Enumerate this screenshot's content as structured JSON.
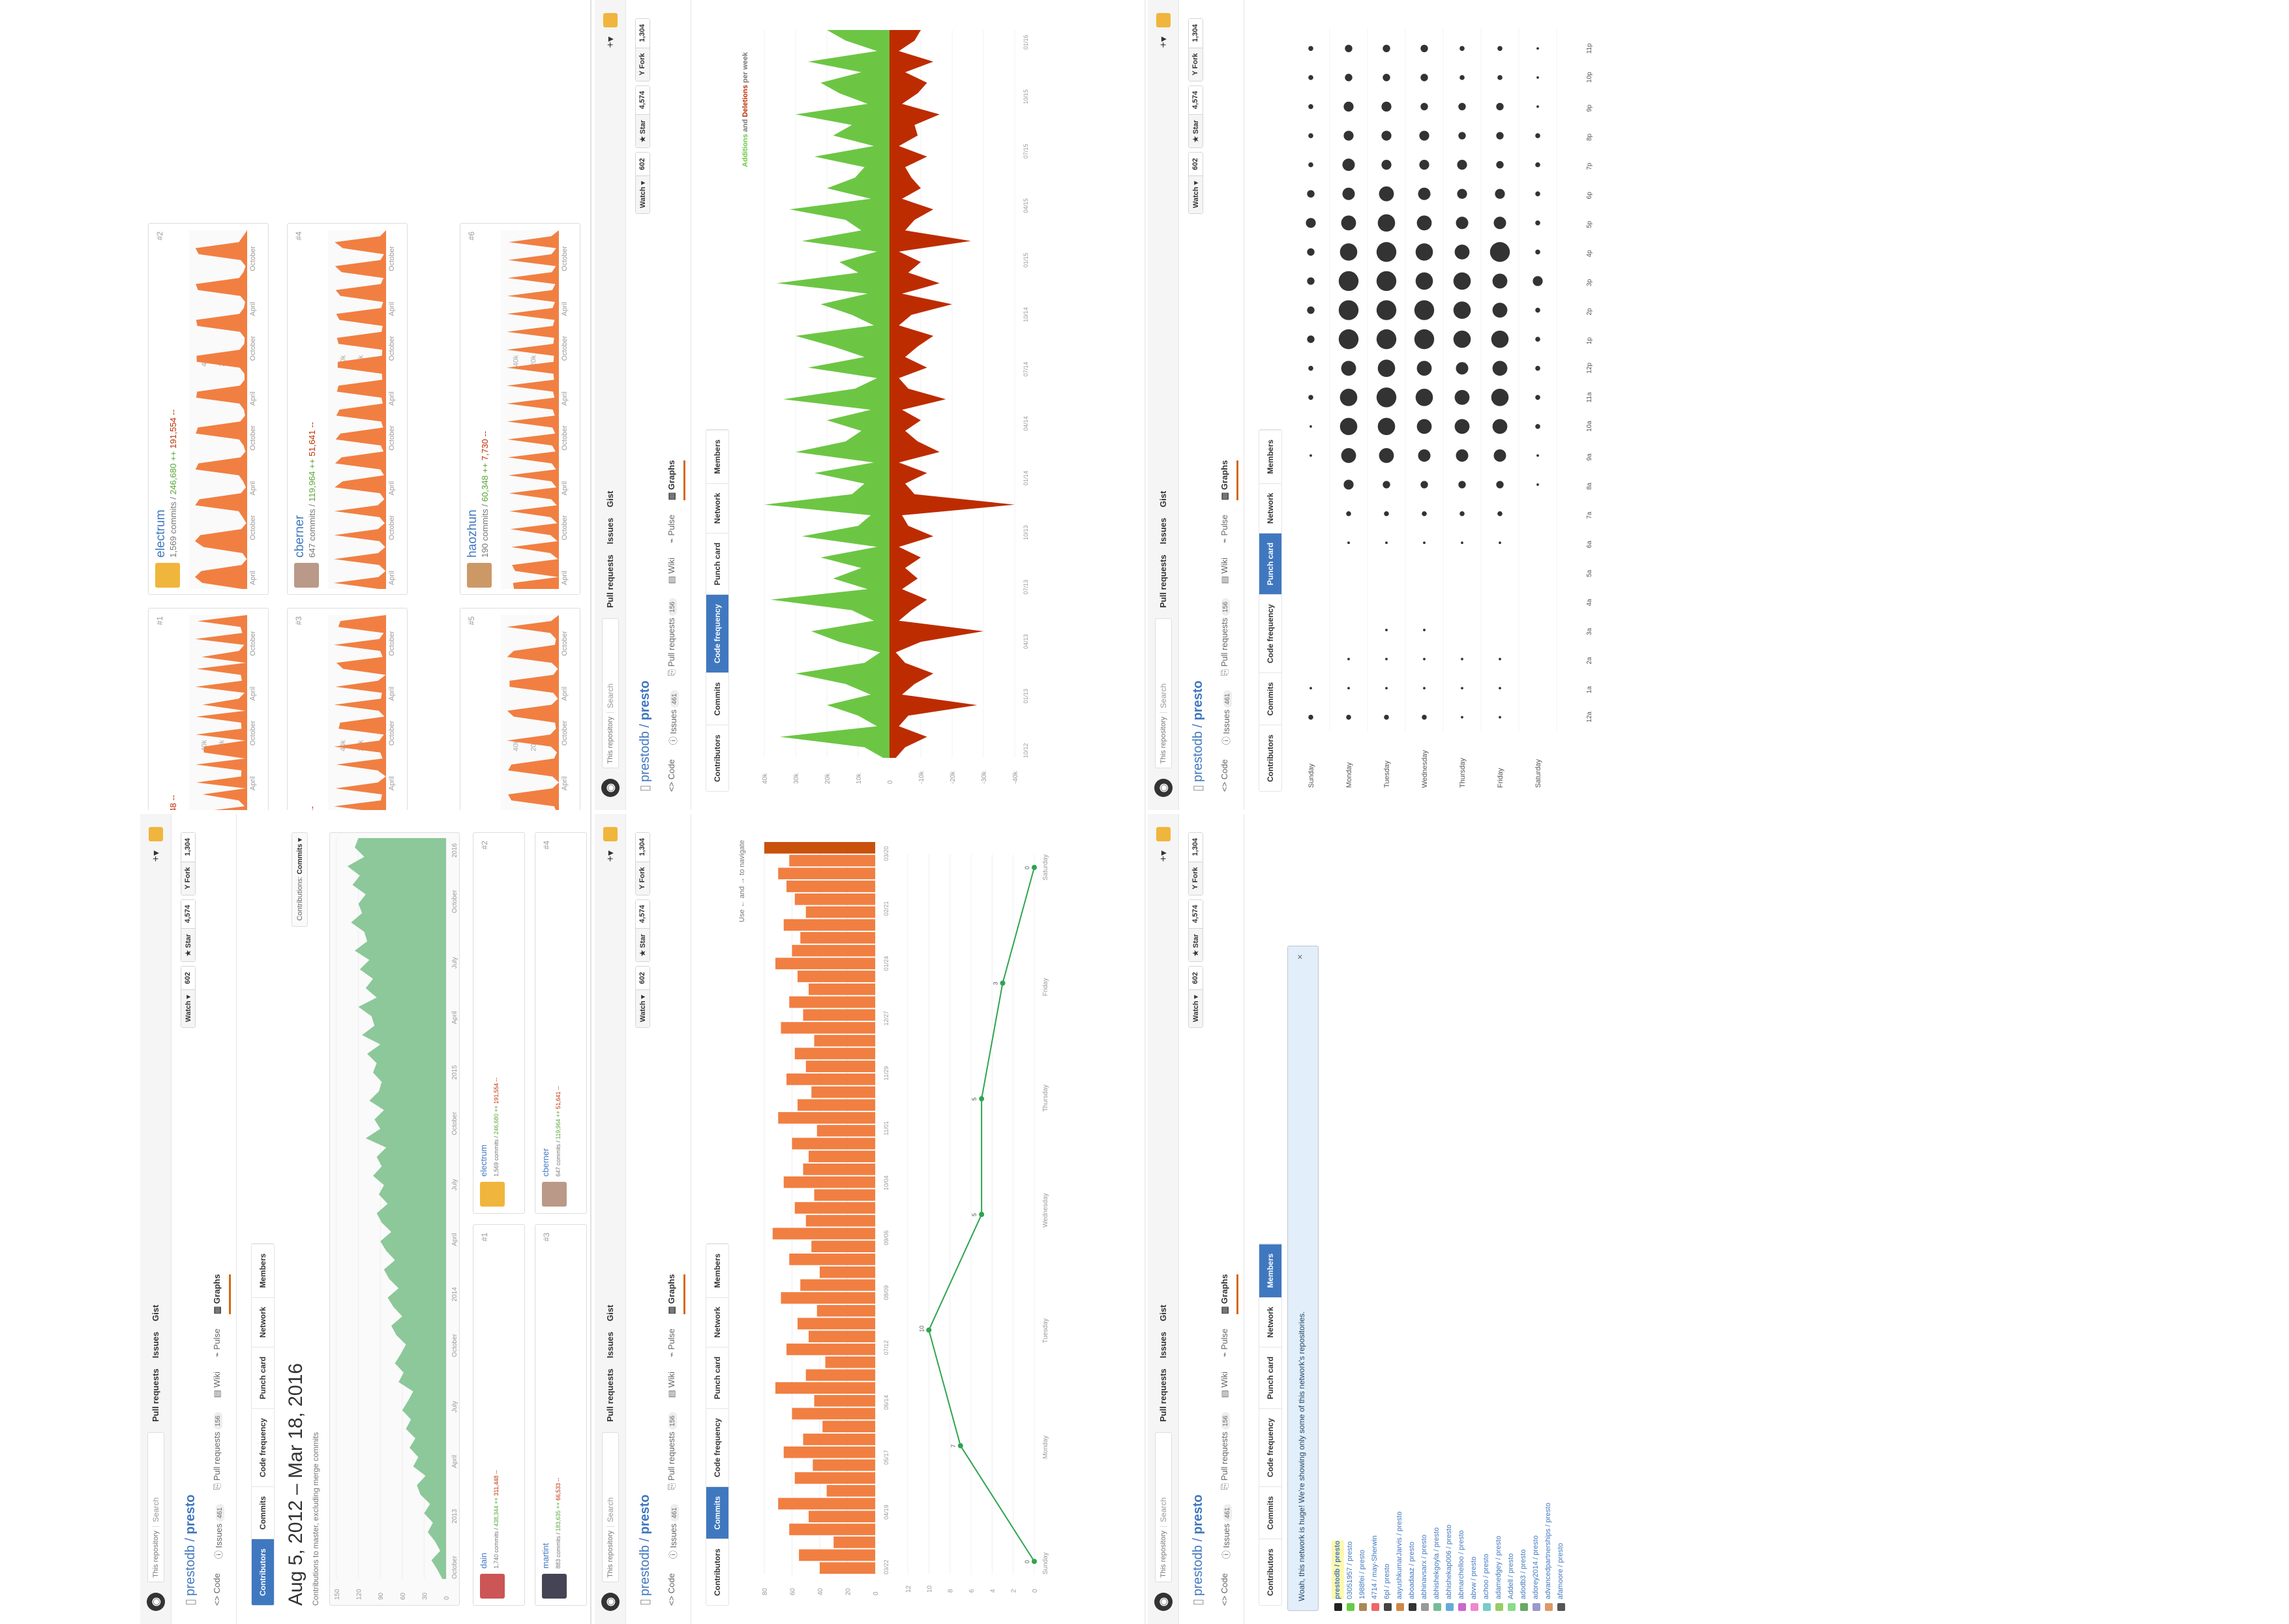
{
  "common": {
    "search_scope": "This repository",
    "search_placeholder": "Search",
    "nav": [
      "Pull requests",
      "Issues",
      "Gist"
    ],
    "repo_owner": "prestodb",
    "repo_name": "presto",
    "watch_label": "Watch ▾",
    "watch_count": "602",
    "star_label": "★ Star",
    "star_count": "4,574",
    "fork_label": "Y Fork",
    "fork_count": "1,304",
    "tabs": [
      {
        "label": "<> Code",
        "count": ""
      },
      {
        "label": "ⓘ Issues",
        "count": "461"
      },
      {
        "label": "⎘ Pull requests",
        "count": "156"
      },
      {
        "label": "▤ Wiki",
        "count": ""
      },
      {
        "label": "⌁ Pulse",
        "count": ""
      },
      {
        "label": "▥ Graphs",
        "count": ""
      }
    ],
    "subnav": [
      "Contributors",
      "Commits",
      "Code frequency",
      "Punch card",
      "Network",
      "Members"
    ]
  },
  "contributors": {
    "title": "Aug 5, 2012 – Mar 18, 2016",
    "subtitle": "Contributions to master, excluding merge commits",
    "select_prefix": "Contributions:",
    "select_value": "Commits ▾",
    "chart_data": {
      "type": "area",
      "y_ticks": [
        "150",
        "120",
        "90",
        "60",
        "30",
        "0"
      ],
      "x_ticks": [
        "October",
        "2013",
        "April",
        "July",
        "October",
        "2014",
        "April",
        "July",
        "October",
        "2015",
        "April",
        "July",
        "October",
        "2016"
      ],
      "values": [
        5,
        12,
        20,
        8,
        15,
        25,
        18,
        30,
        22,
        35,
        40,
        28,
        45,
        38,
        50,
        42,
        55,
        48,
        60,
        52,
        45,
        65,
        58,
        70,
        62,
        55,
        68,
        75,
        60,
        72,
        80,
        65,
        78,
        85,
        70,
        82,
        90,
        75,
        88,
        95,
        80,
        92,
        85,
        100,
        88,
        95,
        82,
        110,
        90,
        98,
        85,
        105,
        92,
        88,
        100,
        95,
        108,
        90,
        115,
        98,
        102,
        120,
        95,
        110,
        100,
        118,
        105,
        125,
        108,
        112,
        130,
        115,
        120,
        110,
        128,
        118,
        135,
        112,
        125,
        120
      ]
    },
    "cards": [
      {
        "rank": "#1",
        "name": "dain",
        "commits": "1,740 commits",
        "adds": "438,344 ++",
        "dels": "311,448 --",
        "avatar": "#c55"
      },
      {
        "rank": "#2",
        "name": "electrum",
        "commits": "1,569 commits",
        "adds": "246,680 ++",
        "dels": "191,554 --",
        "avatar": "#f0b53c"
      },
      {
        "rank": "#3",
        "name": "martint",
        "commits": "883 commits",
        "adds": "183,635 ++",
        "dels": "66,533 --",
        "avatar": "#445"
      },
      {
        "rank": "#4",
        "name": "cberner",
        "commits": "647 commits",
        "adds": "119,964 ++",
        "dels": "51,641 --",
        "avatar": "#b98"
      },
      {
        "rank": "#5",
        "name": "wang",
        "commits": "",
        "adds": "88,555 ++",
        "dels": "37,392 --",
        "avatar": "#777"
      },
      {
        "rank": "#6",
        "name": "haozhun",
        "commits": "190 commits",
        "adds": "60,348 ++",
        "dels": "7,730 --",
        "avatar": "#c96"
      }
    ],
    "card_ticks": [
      "April",
      "October",
      "April",
      "October",
      "April",
      "October",
      "April",
      "October"
    ],
    "card_y_ticks": [
      "40k",
      "20k"
    ]
  },
  "commits": {
    "nav_hint": "Use ← and → to navigate",
    "bar_chart": {
      "type": "bar",
      "y_ticks": [
        "80",
        "60",
        "40",
        "20",
        "0"
      ],
      "x_ticks": [
        "03/22",
        "04/19",
        "05/17",
        "06/14",
        "07/12",
        "08/09",
        "09/06",
        "10/04",
        "11/01",
        "11/29",
        "12/27",
        "01/24",
        "02/21",
        "03/20"
      ],
      "values": [
        40,
        55,
        30,
        62,
        48,
        70,
        35,
        58,
        45,
        66,
        52,
        38,
        60,
        44,
        72,
        50,
        36,
        64,
        48,
        56,
        42,
        68,
        54,
        40,
        62,
        46,
        74,
        50,
        58,
        44,
        66,
        52,
        48,
        60,
        42,
        70,
        56,
        46,
        64,
        50,
        58,
        44,
        68,
        52,
        62,
        48,
        56,
        72,
        60,
        54,
        66,
        50,
        58,
        64,
        70,
        62,
        80
      ]
    },
    "line_chart": {
      "type": "line",
      "y_ticks": [
        "12",
        "10",
        "8",
        "6",
        "4",
        "2",
        "0"
      ],
      "categories": [
        "Sunday",
        "Monday",
        "Tuesday",
        "Wednesday",
        "Thursday",
        "Friday",
        "Saturday"
      ],
      "values": [
        0,
        7,
        10,
        5,
        5,
        3,
        0
      ]
    }
  },
  "code_frequency": {
    "legend_add": "Additions",
    "legend_and": "and",
    "legend_del": "Deletions",
    "legend_suffix": "per week",
    "y_ticks": [
      "40k",
      "30k",
      "20k",
      "10k",
      "0",
      "-10k",
      "-20k",
      "-30k",
      "-40k"
    ],
    "x_ticks": [
      "10/12",
      "01/13",
      "04/13",
      "07/13",
      "10/13",
      "01/14",
      "04/14",
      "07/14",
      "10/14",
      "01/15",
      "04/15",
      "07/15",
      "10/15",
      "01/16"
    ],
    "chart_data": {
      "type": "area",
      "additions": [
        2,
        8,
        35,
        4,
        10,
        20,
        6,
        14,
        30,
        8,
        3,
        16,
        25,
        5,
        12,
        38,
        7,
        18,
        9,
        22,
        4,
        28,
        10,
        6,
        40,
        12,
        8,
        24,
        5,
        30,
        14,
        9,
        20,
        6,
        34,
        11,
        4,
        26,
        8,
        18,
        30,
        5,
        12,
        22,
        7,
        36,
        10,
        16,
        4,
        28,
        9,
        14,
        32,
        6,
        20,
        11,
        8,
        24,
        5,
        18,
        12,
        30,
        7,
        16,
        22,
        9,
        26,
        4,
        14,
        20
      ],
      "deletions": [
        -2,
        -5,
        -12,
        -3,
        -6,
        -28,
        -4,
        -8,
        -14,
        -5,
        -2,
        -10,
        -30,
        -3,
        -7,
        -12,
        -4,
        -9,
        -5,
        -10,
        -3,
        -14,
        -6,
        -4,
        -40,
        -8,
        -5,
        -12,
        -3,
        -16,
        -9,
        -5,
        -10,
        -4,
        -18,
        -6,
        -3,
        -12,
        -5,
        -9,
        -14,
        -3,
        -7,
        -20,
        -4,
        -16,
        -6,
        -10,
        -3,
        -26,
        -5,
        -8,
        -14,
        -4,
        -10,
        -7,
        -5,
        -12,
        -3,
        -9,
        -8,
        -16,
        -4,
        -9,
        -12,
        -5,
        -14,
        -3,
        -8,
        -10
      ]
    }
  },
  "punch_card": {
    "days": [
      "Sunday",
      "Monday",
      "Tuesday",
      "Wednesday",
      "Thursday",
      "Friday",
      "Saturday"
    ],
    "hours": [
      "12a",
      "1a",
      "2a",
      "3a",
      "4a",
      "5a",
      "6a",
      "7a",
      "8a",
      "9a",
      "10a",
      "11a",
      "12p",
      "1p",
      "2p",
      "3p",
      "4p",
      "5p",
      "6p",
      "7p",
      "8p",
      "9p",
      "10p",
      "11p"
    ],
    "chart_data": {
      "type": "scatter",
      "values": [
        [
          2,
          1,
          0,
          0,
          0,
          0,
          0,
          0,
          0,
          1,
          1,
          2,
          2,
          3,
          3,
          3,
          3,
          4,
          3,
          2,
          2,
          2,
          2,
          2
        ],
        [
          2,
          1,
          1,
          0,
          0,
          0,
          1,
          2,
          4,
          6,
          7,
          7,
          6,
          8,
          8,
          8,
          7,
          6,
          5,
          5,
          4,
          4,
          3,
          3
        ],
        [
          2,
          1,
          1,
          1,
          0,
          0,
          1,
          2,
          3,
          6,
          7,
          8,
          7,
          8,
          8,
          8,
          8,
          7,
          6,
          4,
          4,
          4,
          3,
          3
        ],
        [
          2,
          1,
          1,
          1,
          0,
          0,
          1,
          2,
          3,
          5,
          6,
          7,
          6,
          8,
          8,
          7,
          7,
          6,
          5,
          4,
          4,
          3,
          3,
          3
        ],
        [
          1,
          1,
          1,
          0,
          0,
          0,
          1,
          2,
          3,
          5,
          6,
          6,
          5,
          7,
          7,
          7,
          6,
          5,
          4,
          4,
          3,
          3,
          2,
          2
        ],
        [
          1,
          1,
          1,
          0,
          0,
          0,
          1,
          2,
          3,
          5,
          6,
          7,
          6,
          7,
          6,
          6,
          8,
          5,
          4,
          3,
          3,
          3,
          2,
          2
        ],
        [
          0,
          0,
          0,
          0,
          0,
          0,
          0,
          0,
          1,
          1,
          2,
          2,
          2,
          2,
          2,
          4,
          2,
          2,
          2,
          2,
          2,
          1,
          1,
          1
        ]
      ]
    }
  },
  "members": {
    "flash": "Woah, this network is huge! We're showing only some of this network's repositories.",
    "close": "×",
    "repos": [
      {
        "name": "prestodb / presto",
        "color": "#222",
        "root": true
      },
      {
        "name": "03051957 / presto",
        "color": "#6c4"
      },
      {
        "name": "1988fei / presto",
        "color": "#a85"
      },
      {
        "name": "4714 / may-Sherwin",
        "color": "#e66"
      },
      {
        "name": "6pl / presto",
        "color": "#444"
      },
      {
        "name": "aayushkumarJarvis / presto",
        "color": "#c84"
      },
      {
        "name": "aboadaaz / presto",
        "color": "#333"
      },
      {
        "name": "abhinavsarx / presto",
        "color": "#999"
      },
      {
        "name": "abhishekgoyla / presto",
        "color": "#7b9"
      },
      {
        "name": "abhishekap006 / presto",
        "color": "#6ad"
      },
      {
        "name": "abmarchelloo / presto",
        "color": "#c6c"
      },
      {
        "name": "abvw / presto",
        "color": "#e8c"
      },
      {
        "name": "achoo / presto",
        "color": "#7cc"
      },
      {
        "name": "adamedgey / presto",
        "color": "#9c6"
      },
      {
        "name": "Addell / presto",
        "color": "#8d8"
      },
      {
        "name": "adodb3 / presto",
        "color": "#6a6"
      },
      {
        "name": "adorey2014 / presto",
        "color": "#99c"
      },
      {
        "name": "advancedpartnerships / presto",
        "color": "#d96"
      },
      {
        "name": "afamoore / presto",
        "color": "#555"
      }
    ]
  }
}
